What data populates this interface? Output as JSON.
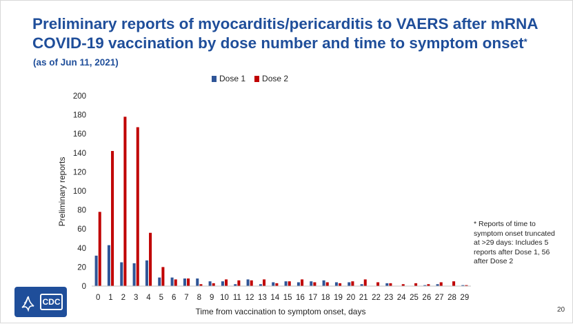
{
  "slide": {
    "title_main": "Preliminary reports of myocarditis/pericarditis to VAERS after mRNA COVID-19 vaccination by dose number and time to symptom onset",
    "title_marker": "*",
    "as_of": "(as of Jun 11, 2021)",
    "footnote": "* Reports of time to symptom onset truncated at >29 days: Includes 5 reports after Dose 1, 56 after Dose 2",
    "page_number": "20",
    "logo_text": "CDC"
  },
  "colors": {
    "dose1": "#2f5597",
    "dose2": "#c00000",
    "title": "#1f4e9a"
  },
  "chart_data": {
    "type": "bar",
    "title": "",
    "xlabel": "Time from vaccination to symptom onset, days",
    "ylabel": "Preliminary reports",
    "ylim": [
      0,
      200
    ],
    "yticks": [
      0,
      20,
      40,
      60,
      80,
      100,
      120,
      140,
      160,
      180,
      200
    ],
    "grid": false,
    "legend_position": "top-center",
    "categories": [
      "0",
      "1",
      "2",
      "3",
      "4",
      "5",
      "6",
      "7",
      "8",
      "9",
      "10",
      "11",
      "12",
      "13",
      "14",
      "15",
      "16",
      "17",
      "18",
      "19",
      "20",
      "21",
      "22",
      "23",
      "24",
      "25",
      "26",
      "27",
      "28",
      "29"
    ],
    "series": [
      {
        "name": "Dose 1",
        "color": "#2f5597",
        "values": [
          32,
          43,
          25,
          24,
          27,
          9,
          9,
          8,
          8,
          5,
          5,
          2,
          7,
          2,
          4,
          5,
          4,
          5,
          6,
          4,
          4,
          2,
          0,
          3,
          0,
          0,
          1,
          2,
          0,
          1
        ]
      },
      {
        "name": "Dose 2",
        "color": "#c00000",
        "values": [
          78,
          142,
          178,
          167,
          56,
          20,
          7,
          8,
          2,
          3,
          7,
          6,
          6,
          7,
          3,
          5,
          7,
          4,
          4,
          3,
          5,
          7,
          4,
          3,
          2,
          3,
          2,
          4,
          5,
          1
        ]
      }
    ]
  }
}
